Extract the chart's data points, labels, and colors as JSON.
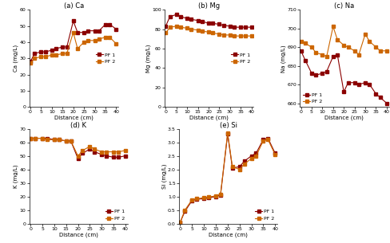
{
  "x": [
    0,
    2,
    5,
    7,
    10,
    12,
    15,
    17,
    20,
    22,
    25,
    27,
    30,
    32,
    35,
    37,
    40
  ],
  "ca_pf1": [
    28,
    33,
    34,
    34,
    35,
    36,
    37,
    37,
    53,
    46,
    46,
    47,
    47,
    47,
    51,
    51,
    48
  ],
  "ca_pf2": [
    27,
    30,
    31,
    31,
    32,
    32,
    33,
    33,
    46,
    36,
    40,
    41,
    41,
    42,
    43,
    43,
    39
  ],
  "mg_pf1": [
    83,
    93,
    95,
    93,
    91,
    90,
    89,
    88,
    86,
    86,
    85,
    84,
    83,
    82,
    82,
    82,
    82
  ],
  "mg_pf2": [
    76,
    82,
    83,
    82,
    81,
    80,
    79,
    78,
    77,
    76,
    75,
    74,
    74,
    73,
    73,
    73,
    73
  ],
  "na_pf1": [
    688,
    683,
    676,
    675,
    676,
    677,
    685,
    686,
    666,
    671,
    671,
    670,
    671,
    670,
    665,
    663,
    660
  ],
  "na_pf2": [
    693,
    692,
    690,
    687,
    686,
    685,
    701,
    694,
    691,
    690,
    688,
    686,
    697,
    693,
    690,
    688,
    688
  ],
  "k_pf1": [
    63,
    63,
    63,
    63,
    62,
    62,
    61,
    61,
    48,
    52,
    55,
    53,
    51,
    50,
    49,
    49,
    50
  ],
  "k_pf2": [
    63,
    63,
    63,
    62,
    62,
    62,
    61,
    61,
    50,
    54,
    57,
    55,
    53,
    53,
    53,
    53,
    54
  ],
  "si_pf1": [
    0.05,
    0.45,
    0.85,
    0.9,
    0.92,
    0.95,
    1.0,
    1.05,
    3.3,
    2.05,
    2.1,
    2.3,
    2.5,
    2.6,
    3.1,
    3.15,
    2.6
  ],
  "si_pf2": [
    0.05,
    0.5,
    0.88,
    0.92,
    0.95,
    0.98,
    1.02,
    1.08,
    3.35,
    2.1,
    2.0,
    2.2,
    2.4,
    2.5,
    3.05,
    3.1,
    2.55
  ],
  "color_pf1": "#8B0000",
  "color_pf2": "#CC6600",
  "markersize": 2.5,
  "linewidth": 0.8,
  "title_fontsize": 6,
  "label_fontsize": 5,
  "tick_fontsize": 4.5,
  "legend_fontsize": 4.5
}
